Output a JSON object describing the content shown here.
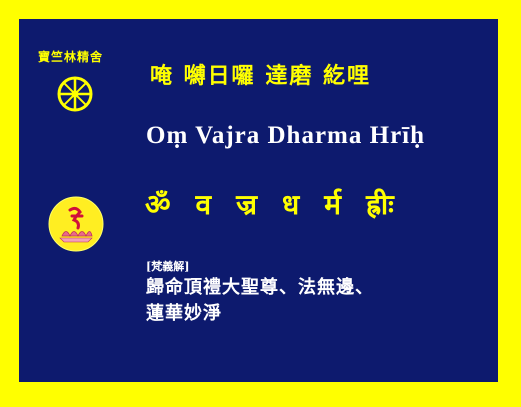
{
  "colors": {
    "frame": "#ffff00",
    "panel": "#0d1a6e",
    "accent": "#ffff00",
    "text": "#ffffff"
  },
  "organization": "寶竺林精舍",
  "icons": {
    "top": "dharma-wheel-icon",
    "bottom": "lotus-seed-syllable-icon"
  },
  "mantra": {
    "chinese_transliteration": "唵 嚩日囉 達磨 紇哩",
    "romanized": "Oṃ Vajra Dharma Hrīḥ",
    "siddham_glyphs": [
      "ॐ",
      "व",
      "ज्र",
      "ध",
      "र्म",
      "ह्रीः"
    ]
  },
  "translation": {
    "label": "[梵義解]",
    "lines": [
      "歸命頂禮大聖尊、法無邊、",
      "蓮華妙淨"
    ]
  }
}
